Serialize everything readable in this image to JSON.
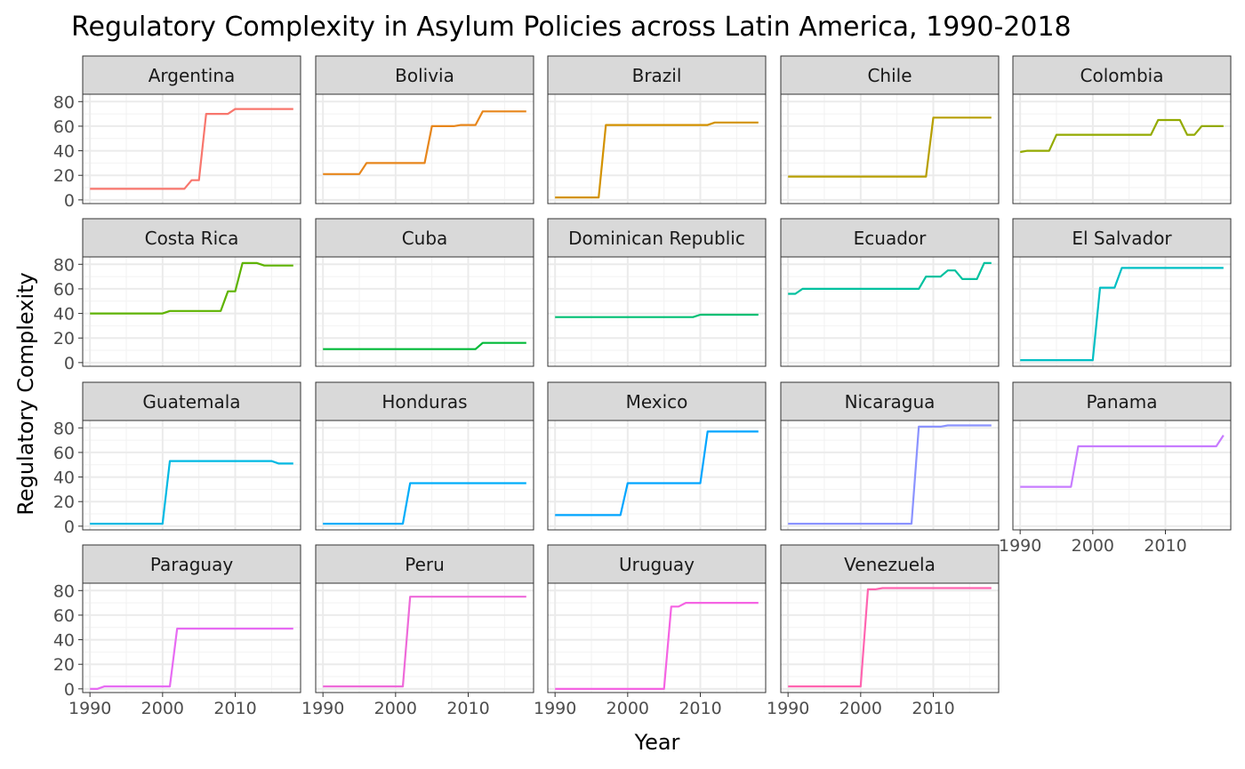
{
  "chart_data": {
    "type": "line",
    "title": "Regulatory Complexity in Asylum Policies across Latin America, 1990-2018",
    "xlabel": "Year",
    "ylabel": "Regulatory Complexity",
    "xlim": [
      1989,
      2019
    ],
    "ylim": [
      -3,
      86
    ],
    "x_ticks": [
      1990,
      2000,
      2010
    ],
    "y_ticks": [
      0,
      20,
      40,
      60,
      80
    ],
    "grid": true,
    "legend": "none",
    "facets": "wrap, 5 columns, shared axes",
    "series": [
      {
        "name": "Argentina",
        "color": "#F8766D",
        "points": [
          [
            1990,
            9
          ],
          [
            2003,
            9
          ],
          [
            2004,
            16
          ],
          [
            2005,
            16
          ],
          [
            2006,
            70
          ],
          [
            2009,
            70
          ],
          [
            2010,
            74
          ],
          [
            2018,
            74
          ]
        ]
      },
      {
        "name": "Bolivia",
        "color": "#E7861B",
        "points": [
          [
            1990,
            21
          ],
          [
            1995,
            21
          ],
          [
            1996,
            30
          ],
          [
            2004,
            30
          ],
          [
            2005,
            60
          ],
          [
            2008,
            60
          ],
          [
            2009,
            61
          ],
          [
            2011,
            61
          ],
          [
            2012,
            72
          ],
          [
            2018,
            72
          ]
        ]
      },
      {
        "name": "Brazil",
        "color": "#D39200",
        "points": [
          [
            1990,
            2
          ],
          [
            1996,
            2
          ],
          [
            1997,
            61
          ],
          [
            2011,
            61
          ],
          [
            2012,
            63
          ],
          [
            2018,
            63
          ]
        ]
      },
      {
        "name": "Chile",
        "color": "#B79F00",
        "points": [
          [
            1990,
            19
          ],
          [
            2009,
            19
          ],
          [
            2010,
            67
          ],
          [
            2018,
            67
          ]
        ]
      },
      {
        "name": "Colombia",
        "color": "#93AA00",
        "points": [
          [
            1990,
            39
          ],
          [
            1991,
            40
          ],
          [
            1994,
            40
          ],
          [
            1995,
            53
          ],
          [
            2008,
            53
          ],
          [
            2009,
            65
          ],
          [
            2012,
            65
          ],
          [
            2013,
            53
          ],
          [
            2014,
            53
          ],
          [
            2015,
            60
          ],
          [
            2018,
            60
          ]
        ]
      },
      {
        "name": "Costa Rica",
        "color": "#5EB300",
        "points": [
          [
            1990,
            40
          ],
          [
            2000,
            40
          ],
          [
            2001,
            42
          ],
          [
            2008,
            42
          ],
          [
            2009,
            58
          ],
          [
            2010,
            58
          ],
          [
            2011,
            81
          ],
          [
            2013,
            81
          ],
          [
            2014,
            79
          ],
          [
            2018,
            79
          ]
        ]
      },
      {
        "name": "Cuba",
        "color": "#00BA38",
        "points": [
          [
            1990,
            11
          ],
          [
            2011,
            11
          ],
          [
            2012,
            16
          ],
          [
            2018,
            16
          ]
        ]
      },
      {
        "name": "Dominican Republic",
        "color": "#00BF74",
        "points": [
          [
            1990,
            37
          ],
          [
            2009,
            37
          ],
          [
            2010,
            39
          ],
          [
            2018,
            39
          ]
        ]
      },
      {
        "name": "Ecuador",
        "color": "#00C19F",
        "points": [
          [
            1990,
            56
          ],
          [
            1991,
            56
          ],
          [
            1992,
            60
          ],
          [
            2008,
            60
          ],
          [
            2009,
            70
          ],
          [
            2011,
            70
          ],
          [
            2012,
            75
          ],
          [
            2013,
            75
          ],
          [
            2014,
            68
          ],
          [
            2016,
            68
          ],
          [
            2017,
            81
          ],
          [
            2018,
            81
          ]
        ]
      },
      {
        "name": "El Salvador",
        "color": "#00BFC4",
        "points": [
          [
            1990,
            2
          ],
          [
            2000,
            2
          ],
          [
            2001,
            61
          ],
          [
            2003,
            61
          ],
          [
            2004,
            77
          ],
          [
            2018,
            77
          ]
        ]
      },
      {
        "name": "Guatemala",
        "color": "#00B9E3",
        "points": [
          [
            1990,
            2
          ],
          [
            2000,
            2
          ],
          [
            2001,
            53
          ],
          [
            2015,
            53
          ],
          [
            2016,
            51
          ],
          [
            2018,
            51
          ]
        ]
      },
      {
        "name": "Honduras",
        "color": "#00ADFA",
        "points": [
          [
            1990,
            2
          ],
          [
            2001,
            2
          ],
          [
            2002,
            35
          ],
          [
            2018,
            35
          ]
        ]
      },
      {
        "name": "Mexico",
        "color": "#00A5FF",
        "points": [
          [
            1990,
            9
          ],
          [
            1999,
            9
          ],
          [
            2000,
            35
          ],
          [
            2010,
            35
          ],
          [
            2011,
            77
          ],
          [
            2018,
            77
          ]
        ]
      },
      {
        "name": "Nicaragua",
        "color": "#8B93FF",
        "points": [
          [
            1990,
            2
          ],
          [
            2007,
            2
          ],
          [
            2008,
            81
          ],
          [
            2011,
            81
          ],
          [
            2012,
            82
          ],
          [
            2018,
            82
          ]
        ]
      },
      {
        "name": "Panama",
        "color": "#C77CFF",
        "points": [
          [
            1990,
            32
          ],
          [
            1997,
            32
          ],
          [
            1998,
            65
          ],
          [
            2017,
            65
          ],
          [
            2018,
            74
          ]
        ]
      },
      {
        "name": "Paraguay",
        "color": "#E76BF3",
        "points": [
          [
            1990,
            0
          ],
          [
            1991,
            0
          ],
          [
            1992,
            2
          ],
          [
            2001,
            2
          ],
          [
            2002,
            49
          ],
          [
            2018,
            49
          ]
        ]
      },
      {
        "name": "Peru",
        "color": "#EE6AD9",
        "points": [
          [
            1990,
            2
          ],
          [
            2001,
            2
          ],
          [
            2002,
            75
          ],
          [
            2018,
            75
          ]
        ]
      },
      {
        "name": "Uruguay",
        "color": "#F564E3",
        "points": [
          [
            1990,
            0
          ],
          [
            2005,
            0
          ],
          [
            2006,
            67
          ],
          [
            2007,
            67
          ],
          [
            2008,
            70
          ],
          [
            2018,
            70
          ]
        ]
      },
      {
        "name": "Venezuela",
        "color": "#FF64B0",
        "points": [
          [
            1990,
            2
          ],
          [
            2000,
            2
          ],
          [
            2001,
            81
          ],
          [
            2002,
            81
          ],
          [
            2003,
            82
          ],
          [
            2018,
            82
          ]
        ]
      }
    ]
  }
}
